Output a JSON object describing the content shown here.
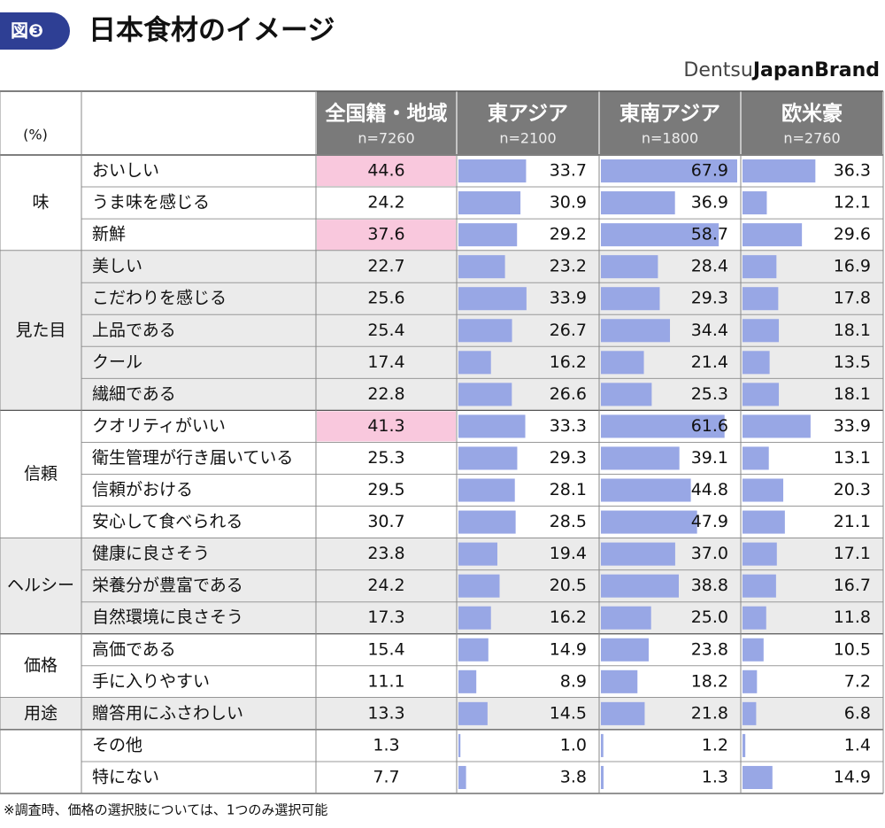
{
  "header": {
    "badge": "図❸",
    "title": "日本食材のイメージ",
    "brand_light": "Dentsu",
    "brand_bold": "JapanBrand"
  },
  "table": {
    "unit": "(%)",
    "highlight_color": "#f9c8dd",
    "bar_color": "#98a7e5",
    "shade_color": "#ebebeb",
    "columns": [
      {
        "name": "全国籍・地域",
        "n": "n=7260",
        "bars": false
      },
      {
        "name": "東アジア",
        "n": "n=2100",
        "bars": true
      },
      {
        "name": "東南アジア",
        "n": "n=1800",
        "bars": true
      },
      {
        "name": "欧米豪",
        "n": "n=2760",
        "bars": true
      }
    ],
    "groups": [
      {
        "label": "味",
        "shaded": false,
        "rows": [
          {
            "label": "おいしい",
            "highlighted": true,
            "values": [
              44.6,
              33.7,
              67.9,
              36.3
            ],
            "value_labels": [
              "44.6",
              "33.7",
              "67.9",
              "36.3"
            ]
          },
          {
            "label": "うま味を感じる",
            "highlighted": false,
            "values": [
              24.2,
              30.9,
              36.9,
              12.1
            ],
            "value_labels": [
              "24.2",
              "30.9",
              "36.9",
              "12.1"
            ]
          },
          {
            "label": "新鮮",
            "highlighted": true,
            "values": [
              37.6,
              29.2,
              58.7,
              29.6
            ],
            "value_labels": [
              "37.6",
              "29.2",
              "58.7",
              "29.6"
            ]
          }
        ]
      },
      {
        "label": "見た目",
        "shaded": true,
        "rows": [
          {
            "label": "美しい",
            "highlighted": false,
            "values": [
              22.7,
              23.2,
              28.4,
              16.9
            ],
            "value_labels": [
              "22.7",
              "23.2",
              "28.4",
              "16.9"
            ]
          },
          {
            "label": "こだわりを感じる",
            "highlighted": false,
            "values": [
              25.6,
              33.9,
              29.3,
              17.8
            ],
            "value_labels": [
              "25.6",
              "33.9",
              "29.3",
              "17.8"
            ]
          },
          {
            "label": "上品である",
            "highlighted": false,
            "values": [
              25.4,
              26.7,
              34.4,
              18.1
            ],
            "value_labels": [
              "25.4",
              "26.7",
              "34.4",
              "18.1"
            ]
          },
          {
            "label": "クール",
            "highlighted": false,
            "values": [
              17.4,
              16.2,
              21.4,
              13.5
            ],
            "value_labels": [
              "17.4",
              "16.2",
              "21.4",
              "13.5"
            ]
          },
          {
            "label": "繊細である",
            "highlighted": false,
            "values": [
              22.8,
              26.6,
              25.3,
              18.1
            ],
            "value_labels": [
              "22.8",
              "26.6",
              "25.3",
              "18.1"
            ]
          }
        ]
      },
      {
        "label": "信頼",
        "shaded": false,
        "rows": [
          {
            "label": "クオリティがいい",
            "highlighted": true,
            "values": [
              41.3,
              33.3,
              61.6,
              33.9
            ],
            "value_labels": [
              "41.3",
              "33.3",
              "61.6",
              "33.9"
            ]
          },
          {
            "label": "衛生管理が行き届いている",
            "highlighted": false,
            "values": [
              25.3,
              29.3,
              39.1,
              13.1
            ],
            "value_labels": [
              "25.3",
              "29.3",
              "39.1",
              "13.1"
            ]
          },
          {
            "label": "信頼がおける",
            "highlighted": false,
            "values": [
              29.5,
              28.1,
              44.8,
              20.3
            ],
            "value_labels": [
              "29.5",
              "28.1",
              "44.8",
              "20.3"
            ]
          },
          {
            "label": "安心して食べられる",
            "highlighted": false,
            "values": [
              30.7,
              28.5,
              47.9,
              21.1
            ],
            "value_labels": [
              "30.7",
              "28.5",
              "47.9",
              "21.1"
            ]
          }
        ]
      },
      {
        "label": "ヘルシー",
        "shaded": true,
        "rows": [
          {
            "label": "健康に良さそう",
            "highlighted": false,
            "values": [
              23.8,
              19.4,
              37.0,
              17.1
            ],
            "value_labels": [
              "23.8",
              "19.4",
              "37.0",
              "17.1"
            ]
          },
          {
            "label": "栄養分が豊富である",
            "highlighted": false,
            "values": [
              24.2,
              20.5,
              38.8,
              16.7
            ],
            "value_labels": [
              "24.2",
              "20.5",
              "38.8",
              "16.7"
            ]
          },
          {
            "label": "自然環境に良さそう",
            "highlighted": false,
            "values": [
              17.3,
              16.2,
              25.0,
              11.8
            ],
            "value_labels": [
              "17.3",
              "16.2",
              "25.0",
              "11.8"
            ]
          }
        ]
      },
      {
        "label": "価格",
        "shaded": false,
        "rows": [
          {
            "label": "高価である",
            "highlighted": false,
            "values": [
              15.4,
              14.9,
              23.8,
              10.5
            ],
            "value_labels": [
              "15.4",
              "14.9",
              "23.8",
              "10.5"
            ]
          },
          {
            "label": "手に入りやすい",
            "highlighted": false,
            "values": [
              11.1,
              8.9,
              18.2,
              7.2
            ],
            "value_labels": [
              "11.1",
              "8.9",
              "18.2",
              "7.2"
            ]
          }
        ]
      },
      {
        "label": "用途",
        "shaded": true,
        "rows": [
          {
            "label": "贈答用にふさわしい",
            "highlighted": false,
            "values": [
              13.3,
              14.5,
              21.8,
              6.8
            ],
            "value_labels": [
              "13.3",
              "14.5",
              "21.8",
              "6.8"
            ]
          }
        ]
      },
      {
        "label": null,
        "shaded": false,
        "rows": [
          {
            "label": "その他",
            "highlighted": false,
            "values": [
              1.3,
              1.0,
              1.2,
              1.4
            ],
            "value_labels": [
              "1.3",
              "1.0",
              "1.2",
              "1.4"
            ]
          },
          {
            "label": "特にない",
            "highlighted": false,
            "values": [
              7.7,
              3.8,
              1.3,
              14.9
            ],
            "value_labels": [
              "7.7",
              "3.8",
              "1.3",
              "14.9"
            ]
          }
        ]
      }
    ]
  },
  "footnote": "※調査時、価格の選択肢については、1つのみ選択可能"
}
